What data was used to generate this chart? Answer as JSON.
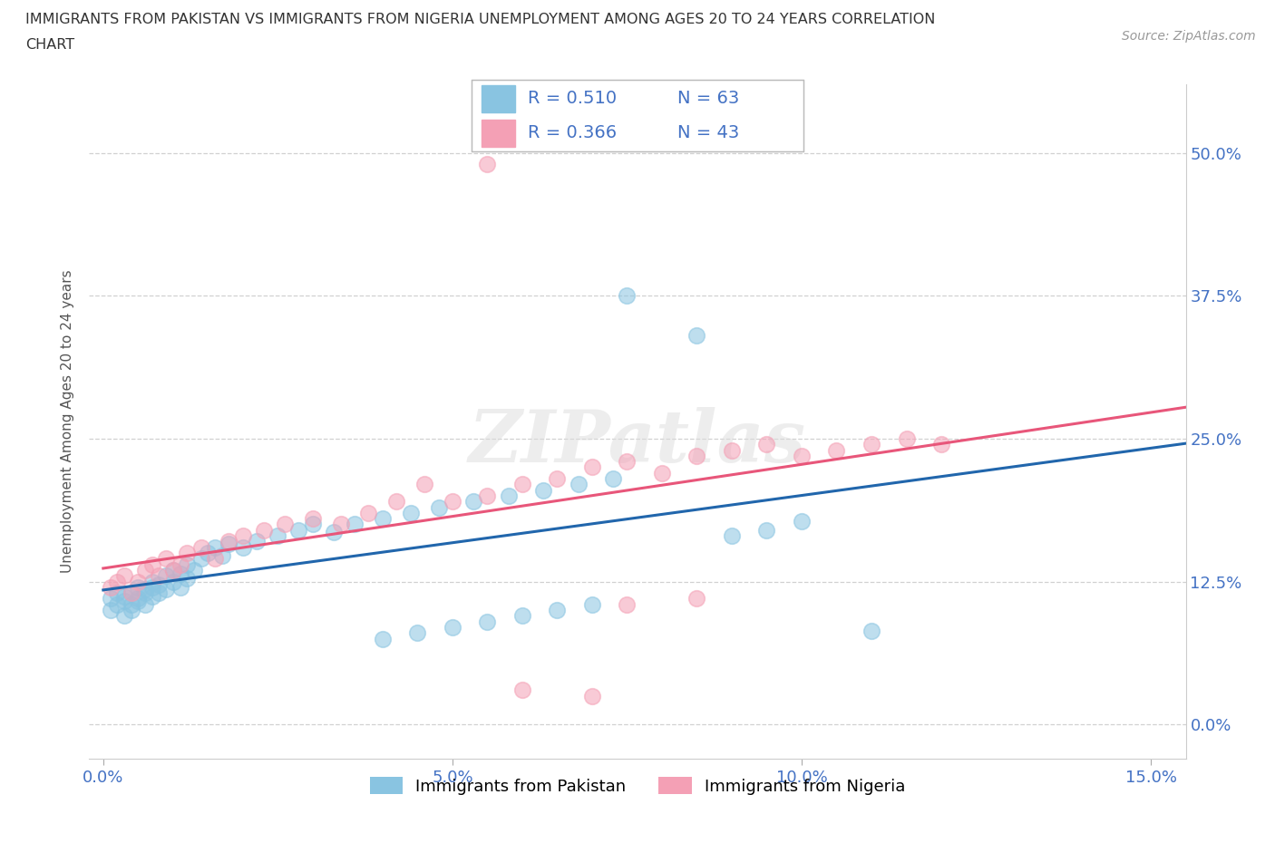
{
  "title_line1": "IMMIGRANTS FROM PAKISTAN VS IMMIGRANTS FROM NIGERIA UNEMPLOYMENT AMONG AGES 20 TO 24 YEARS CORRELATION",
  "title_line2": "CHART",
  "source": "Source: ZipAtlas.com",
  "ylabel": "Unemployment Among Ages 20 to 24 years",
  "ytick_labels_right": [
    "0.0%",
    "12.5%",
    "25.0%",
    "37.5%",
    "50.0%"
  ],
  "ytick_values": [
    0.0,
    0.125,
    0.25,
    0.375,
    0.5
  ],
  "xtick_values": [
    0.0,
    0.05,
    0.1,
    0.15
  ],
  "xtick_labels": [
    "0.0%",
    "5.0%",
    "10.0%",
    "15.0%"
  ],
  "xlim": [
    -0.002,
    0.155
  ],
  "ylim": [
    -0.03,
    0.56
  ],
  "r_pakistan": 0.51,
  "n_pakistan": 63,
  "r_nigeria": 0.366,
  "n_nigeria": 43,
  "legend_label_pakistan": "Immigrants from Pakistan",
  "legend_label_nigeria": "Immigrants from Nigeria",
  "color_pakistan": "#89C4E1",
  "color_nigeria": "#F4A0B5",
  "line_color_pakistan": "#2166AC",
  "line_color_nigeria": "#E8567A",
  "watermark": "ZIPatlas",
  "pak_x": [
    0.001,
    0.001,
    0.002,
    0.002,
    0.003,
    0.003,
    0.003,
    0.004,
    0.004,
    0.004,
    0.005,
    0.005,
    0.005,
    0.006,
    0.006,
    0.006,
    0.007,
    0.007,
    0.007,
    0.008,
    0.008,
    0.009,
    0.009,
    0.01,
    0.01,
    0.011,
    0.011,
    0.012,
    0.012,
    0.013,
    0.014,
    0.015,
    0.016,
    0.017,
    0.018,
    0.02,
    0.022,
    0.025,
    0.028,
    0.03,
    0.033,
    0.036,
    0.04,
    0.044,
    0.048,
    0.053,
    0.058,
    0.063,
    0.068,
    0.073,
    0.04,
    0.045,
    0.05,
    0.055,
    0.06,
    0.065,
    0.07,
    0.075,
    0.085,
    0.09,
    0.095,
    0.1,
    0.11
  ],
  "pak_y": [
    0.1,
    0.11,
    0.105,
    0.115,
    0.095,
    0.108,
    0.112,
    0.1,
    0.115,
    0.105,
    0.11,
    0.12,
    0.108,
    0.115,
    0.105,
    0.118,
    0.112,
    0.12,
    0.125,
    0.115,
    0.122,
    0.118,
    0.13,
    0.125,
    0.135,
    0.12,
    0.132,
    0.128,
    0.14,
    0.135,
    0.145,
    0.15,
    0.155,
    0.148,
    0.158,
    0.155,
    0.16,
    0.165,
    0.17,
    0.175,
    0.168,
    0.175,
    0.18,
    0.185,
    0.19,
    0.195,
    0.2,
    0.205,
    0.21,
    0.215,
    0.075,
    0.08,
    0.085,
    0.09,
    0.095,
    0.1,
    0.105,
    0.375,
    0.34,
    0.165,
    0.17,
    0.178,
    0.082
  ],
  "nig_x": [
    0.001,
    0.002,
    0.003,
    0.004,
    0.005,
    0.006,
    0.007,
    0.008,
    0.009,
    0.01,
    0.011,
    0.012,
    0.014,
    0.016,
    0.018,
    0.02,
    0.023,
    0.026,
    0.03,
    0.034,
    0.038,
    0.042,
    0.046,
    0.05,
    0.055,
    0.06,
    0.065,
    0.07,
    0.075,
    0.08,
    0.085,
    0.09,
    0.095,
    0.1,
    0.105,
    0.11,
    0.115,
    0.12,
    0.055,
    0.06,
    0.07,
    0.075,
    0.085
  ],
  "nig_y": [
    0.12,
    0.125,
    0.13,
    0.115,
    0.125,
    0.135,
    0.14,
    0.13,
    0.145,
    0.135,
    0.14,
    0.15,
    0.155,
    0.145,
    0.16,
    0.165,
    0.17,
    0.175,
    0.18,
    0.175,
    0.185,
    0.195,
    0.21,
    0.195,
    0.2,
    0.21,
    0.215,
    0.225,
    0.23,
    0.22,
    0.235,
    0.24,
    0.245,
    0.235,
    0.24,
    0.245,
    0.25,
    0.245,
    0.49,
    0.03,
    0.025,
    0.105,
    0.11
  ]
}
